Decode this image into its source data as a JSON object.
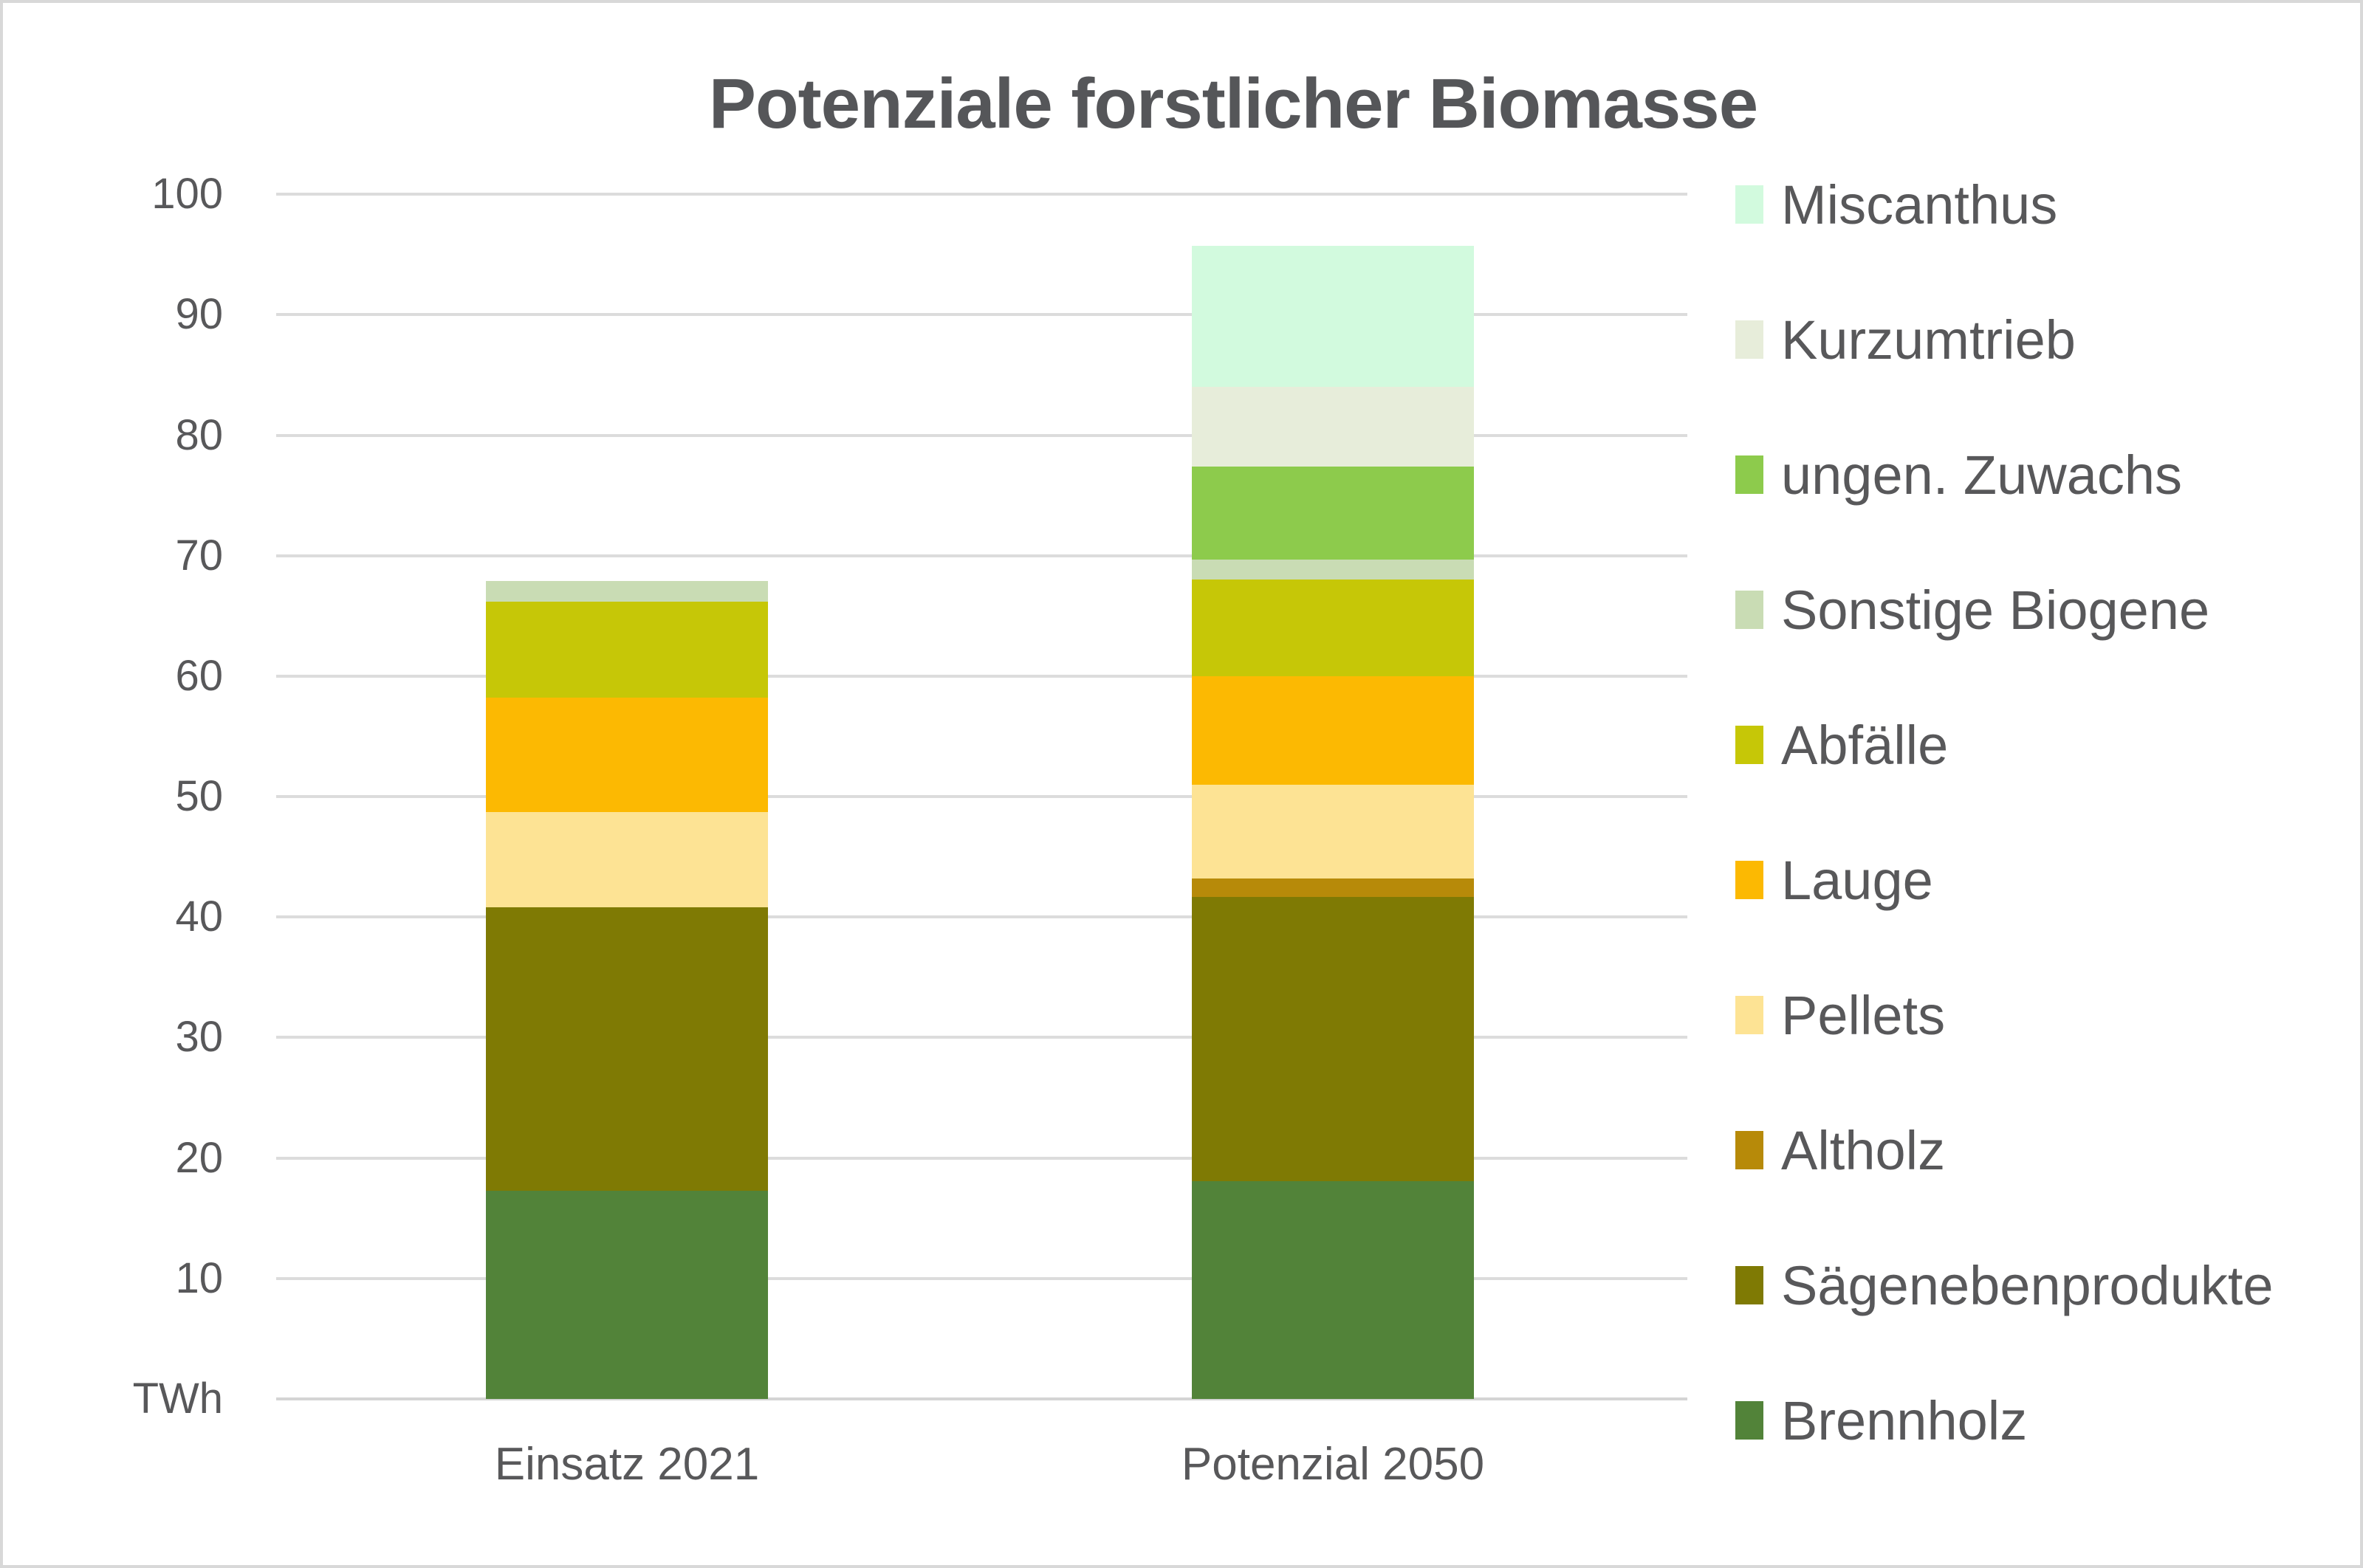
{
  "title": "Potenziale forstlicher Biomasse",
  "y_axis": {
    "unit_label": "TWh",
    "ticks": [
      100,
      90,
      80,
      70,
      60,
      50,
      40,
      30,
      20,
      10
    ]
  },
  "colors": {
    "text": "#58585a",
    "grid": "#dcdcdc"
  },
  "chart_data": {
    "type": "bar",
    "stacked": true,
    "title": "Potenziale forstlicher Biomasse",
    "ylabel": "TWh",
    "ylim": [
      0,
      100
    ],
    "grid": true,
    "legend_position": "right",
    "legend_order": "top legend item = top bar segment",
    "categories": [
      "Einsatz 2021",
      "Potenzial 2050"
    ],
    "series": [
      {
        "name": "Brennholz",
        "color": "#528339",
        "values": [
          17.3,
          18.1
        ]
      },
      {
        "name": "Sägenebenprodukte",
        "color": "#7f7a04",
        "values": [
          23.5,
          23.6
        ]
      },
      {
        "name": "Altholz",
        "color": "#b78a09",
        "values": [
          0,
          1.5
        ]
      },
      {
        "name": "Pellets",
        "color": "#fde394",
        "values": [
          7.9,
          7.8
        ]
      },
      {
        "name": "Lauge",
        "color": "#fcb902",
        "values": [
          9.5,
          9.0
        ]
      },
      {
        "name": "Abfälle",
        "color": "#c6c707",
        "values": [
          8.0,
          8.0
        ]
      },
      {
        "name": "Sonstige Biogene",
        "color": "#c9dcb4",
        "values": [
          1.7,
          1.7
        ]
      },
      {
        "name": "ungen. Zuwachs",
        "color": "#8dcb4c",
        "values": [
          0,
          7.7
        ]
      },
      {
        "name": "Kurzumtrieb",
        "color": "#e7edda",
        "values": [
          0,
          6.6
        ]
      },
      {
        "name": "Miscanthus",
        "color": "#d2fade",
        "values": [
          0,
          11.7
        ]
      }
    ],
    "totals": [
      67.9,
      95.7
    ]
  }
}
